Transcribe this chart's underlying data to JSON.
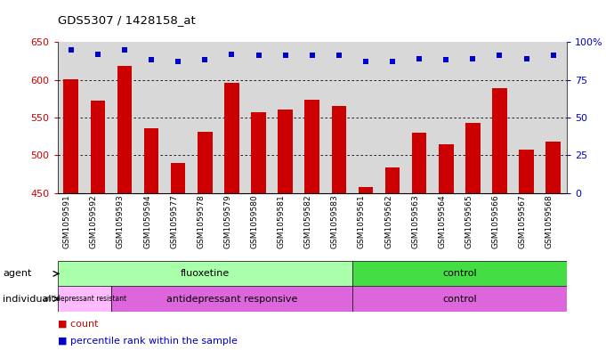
{
  "title": "GDS5307 / 1428158_at",
  "samples": [
    "GSM1059591",
    "GSM1059592",
    "GSM1059593",
    "GSM1059594",
    "GSM1059577",
    "GSM1059578",
    "GSM1059579",
    "GSM1059580",
    "GSM1059581",
    "GSM1059582",
    "GSM1059583",
    "GSM1059561",
    "GSM1059562",
    "GSM1059563",
    "GSM1059564",
    "GSM1059565",
    "GSM1059566",
    "GSM1059567",
    "GSM1059568"
  ],
  "bar_values": [
    601,
    572,
    618,
    536,
    490,
    531,
    596,
    557,
    560,
    573,
    565,
    458,
    484,
    530,
    514,
    543,
    589,
    507,
    518
  ],
  "dot_values": [
    95,
    92,
    95,
    88,
    87,
    88,
    92,
    91,
    91,
    91,
    91,
    87,
    87,
    89,
    88,
    89,
    91,
    89,
    91
  ],
  "bar_color": "#cc0000",
  "dot_color": "#0000cc",
  "ylim_left": [
    450,
    650
  ],
  "ylim_right": [
    0,
    100
  ],
  "yticks_left": [
    450,
    500,
    550,
    600,
    650
  ],
  "yticks_right": [
    0,
    25,
    50,
    75,
    100
  ],
  "grid_lines": [
    500,
    550,
    600
  ],
  "bar_width": 0.55,
  "background_color": "#ffffff",
  "plot_bg_color": "#d8d8d8",
  "agent_groups": [
    {
      "label": "fluoxetine",
      "xstart": 0,
      "xend": 10,
      "color": "#aaffaa"
    },
    {
      "label": "control",
      "xstart": 11,
      "xend": 18,
      "color": "#44dd44"
    }
  ],
  "individual_groups": [
    {
      "label": "antidepressant resistant",
      "xstart": 0,
      "xend": 1,
      "color": "#ffbbff"
    },
    {
      "label": "antidepressant responsive",
      "xstart": 2,
      "xend": 10,
      "color": "#dd66dd"
    },
    {
      "label": "control",
      "xstart": 11,
      "xend": 18,
      "color": "#dd66dd"
    }
  ]
}
